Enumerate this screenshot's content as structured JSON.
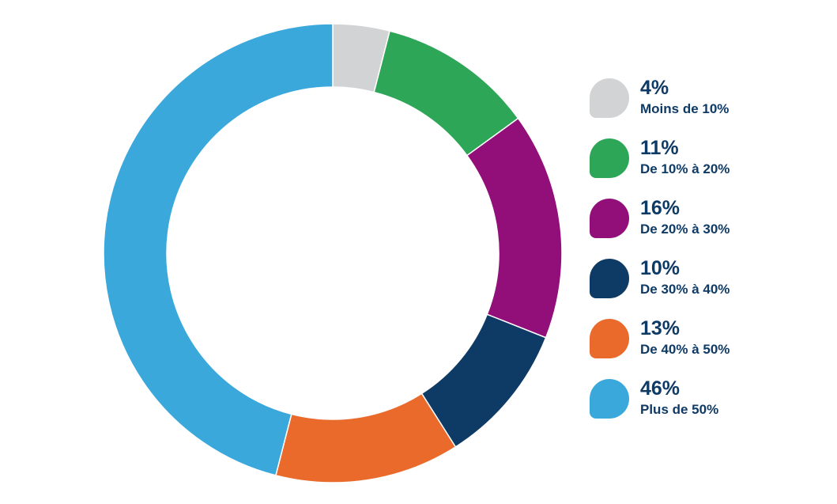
{
  "chart_data": {
    "type": "pie",
    "donut": true,
    "legend_position": "right",
    "slices": [
      {
        "value": "4%",
        "label": "Moins de 10%",
        "percent": 4,
        "color": "#d1d3d4"
      },
      {
        "value": "11%",
        "label": "De 10% à 20%",
        "percent": 11,
        "color": "#2ea657"
      },
      {
        "value": "16%",
        "label": "De 20% à 30%",
        "percent": 16,
        "color": "#920f7a"
      },
      {
        "value": "10%",
        "label": "De 30% à 40%",
        "percent": 10,
        "color": "#0e3a66"
      },
      {
        "value": "13%",
        "label": "De 40% à 50%",
        "percent": 13,
        "color": "#ea6a2c"
      },
      {
        "value": "46%",
        "label": "Plus de 50%",
        "percent": 46,
        "color": "#3ba8dc"
      }
    ]
  }
}
